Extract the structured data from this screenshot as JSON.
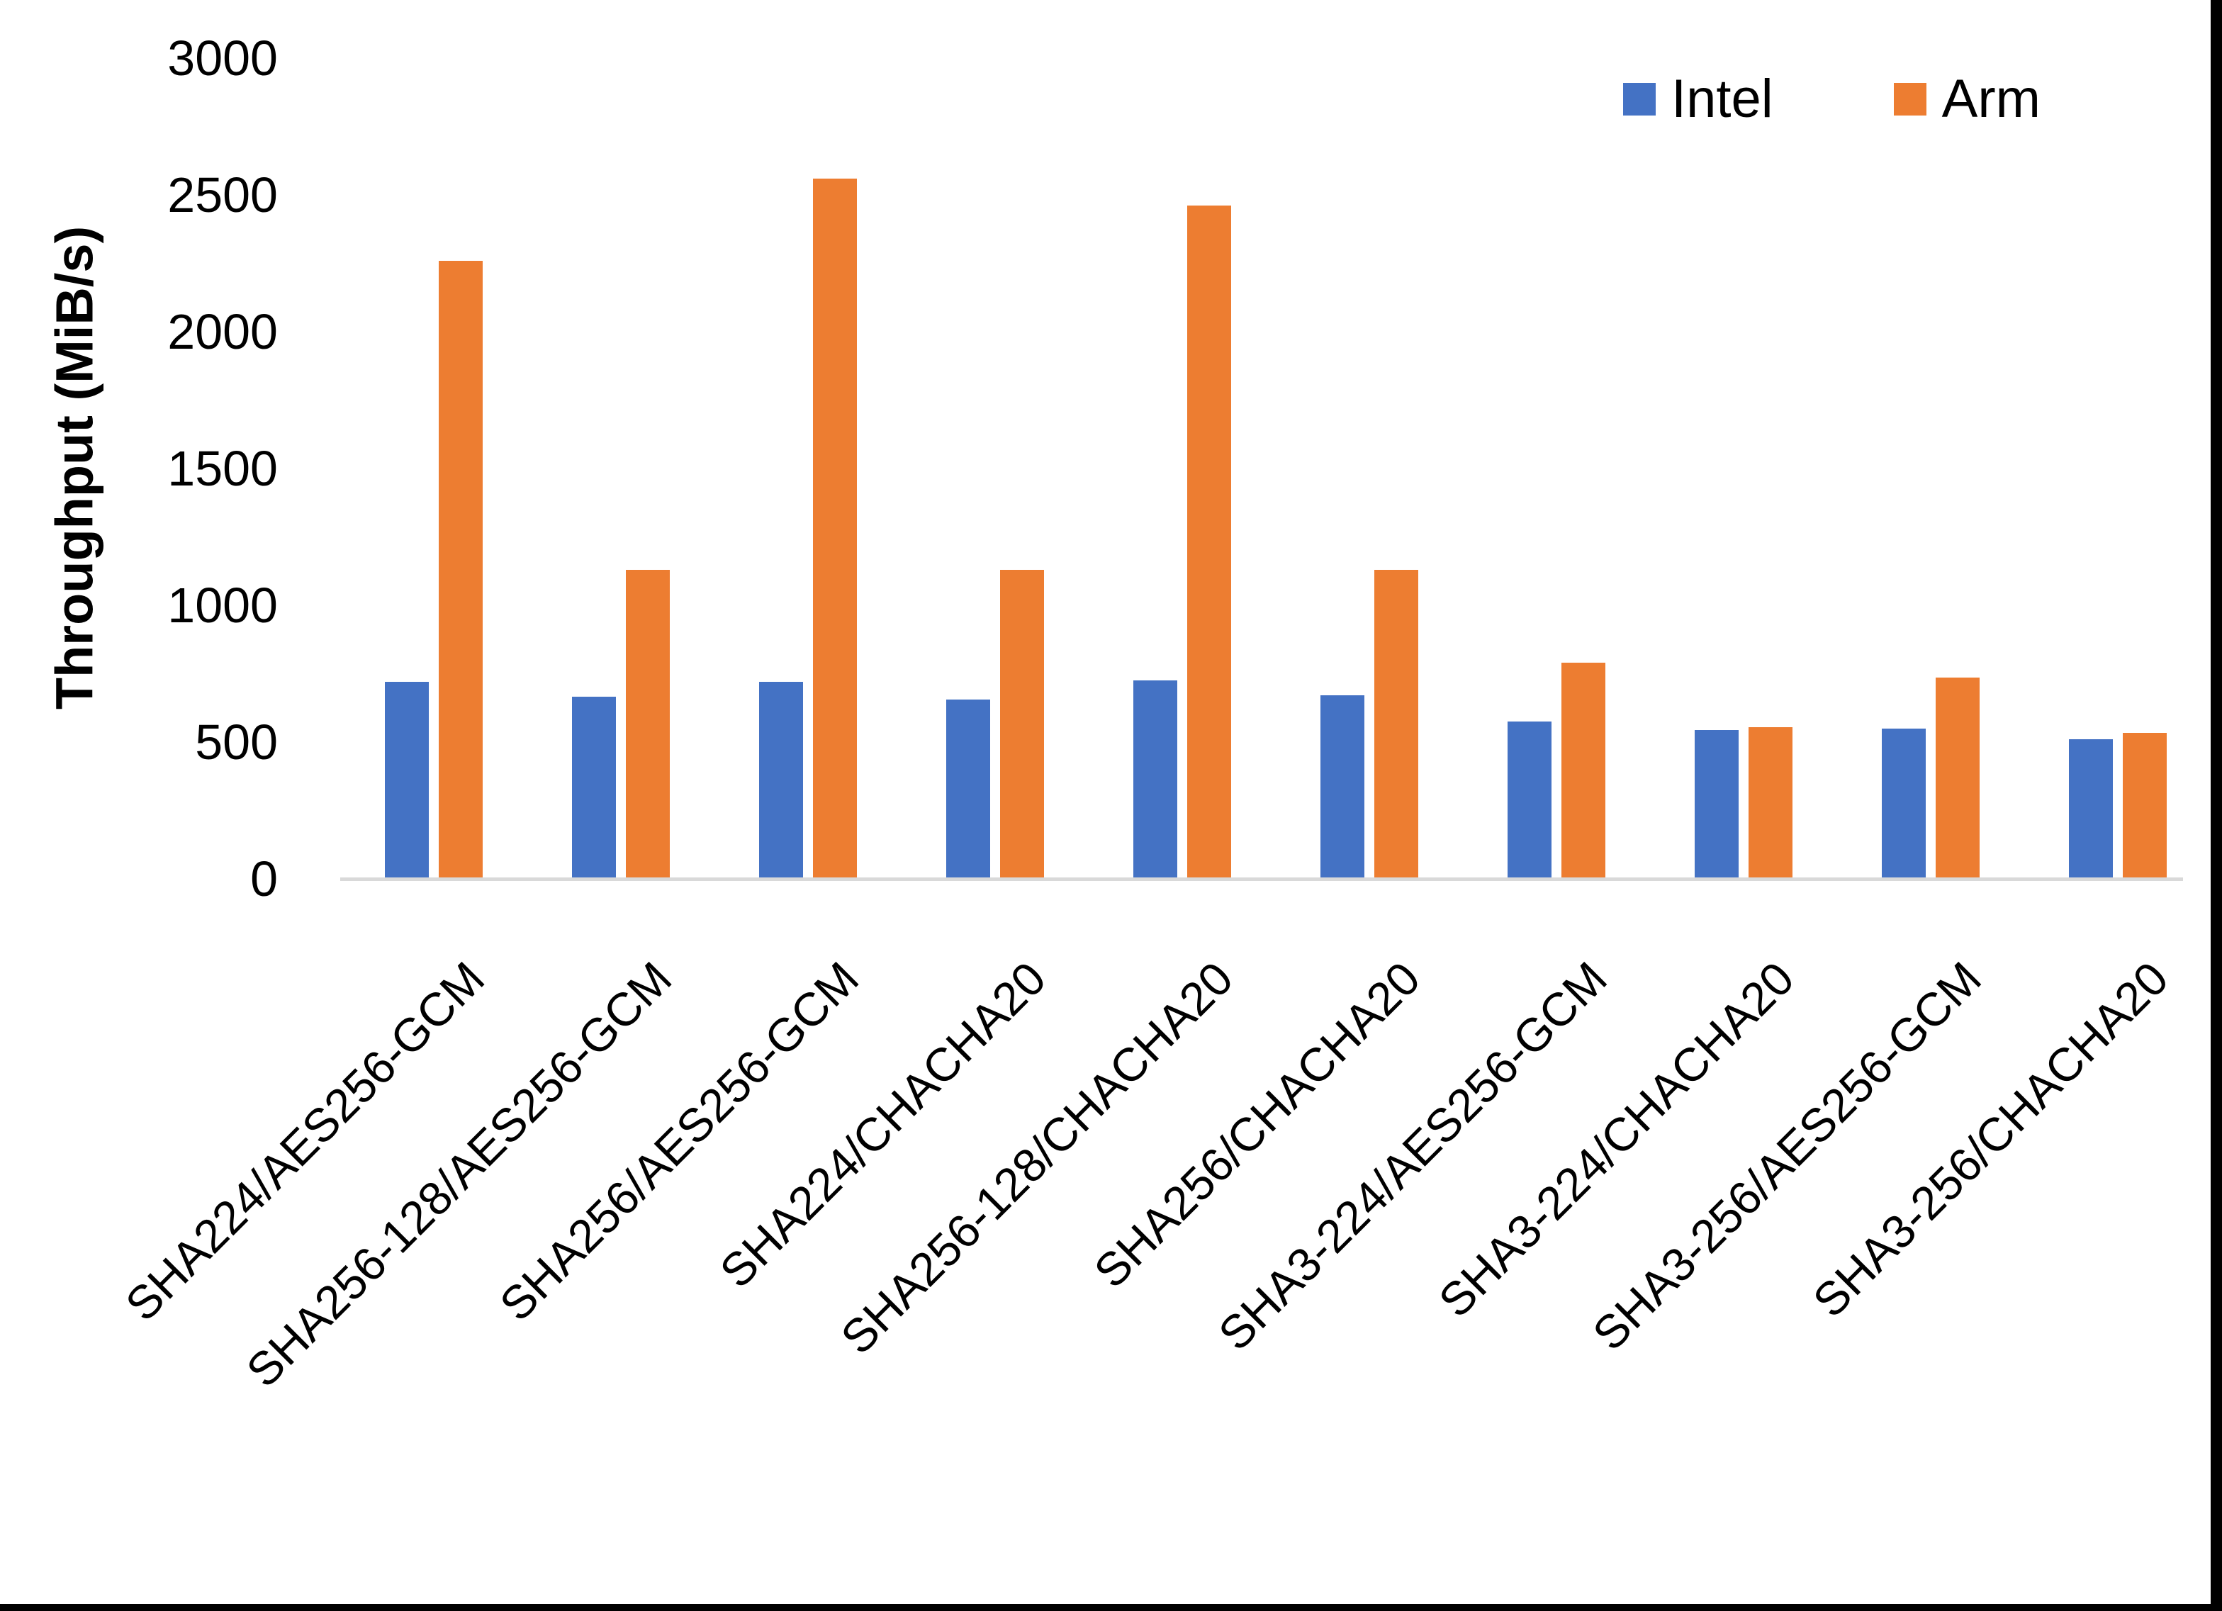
{
  "chart_data": {
    "type": "bar",
    "title": "",
    "categories": [
      "SHA224/AES256-GCM",
      "SHA256-128/AES256-GCM",
      "SHA256/AES256-GCM",
      "SHA224/CHACHA20",
      "SHA256-128/CHACHA20",
      "SHA256/CHACHA20",
      "SHA3-224/AES256-GCM",
      "SHA3-224/CHACHA20",
      "SHA3-256/AES256-GCM",
      "SHA3-256/CHACHA20"
    ],
    "series": [
      {
        "name": "Intel",
        "color": "#4472C4",
        "values": [
          720,
          665,
          720,
          655,
          725,
          670,
          575,
          545,
          550,
          510
        ]
      },
      {
        "name": "Arm",
        "color": "#ED7D31",
        "values": [
          2260,
          1130,
          2560,
          1130,
          2460,
          1130,
          790,
          555,
          735,
          535
        ]
      }
    ],
    "xlabel": "",
    "ylabel": "Throughput (MiB/s)",
    "ylim": [
      0,
      3000
    ],
    "ytick_step": 500,
    "yticks": [
      0,
      500,
      1000,
      1500,
      2000,
      2500,
      3000
    ],
    "grid": false,
    "legend_position": "top-right",
    "axis_line_color": "#d9d9d9",
    "text_color": "#000000"
  }
}
